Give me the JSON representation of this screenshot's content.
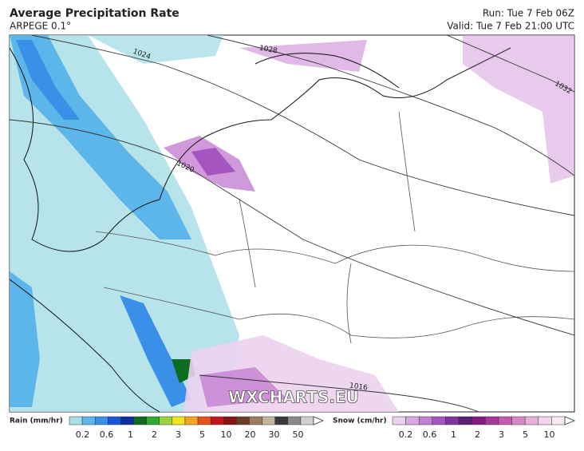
{
  "header": {
    "title": "Average Precipitation Rate",
    "subtitle": "ARPEGE 0.1°",
    "run": "Run: Tue 7 Feb 06Z",
    "valid": "Valid: Tue 7 Feb 21:00 UTC"
  },
  "map": {
    "watermark": "WXCHARTS.EU",
    "isobar_labels": [
      "1024",
      "1028",
      "1020",
      "1016",
      "1032"
    ]
  },
  "legend": {
    "rain": {
      "title": "Rain (mm/hr)",
      "ticks": [
        "0.2",
        "0.6",
        "1",
        "2",
        "3",
        "5",
        "10",
        "20",
        "30",
        "50"
      ],
      "colors": [
        "#a9dfe6",
        "#5cb6ea",
        "#3a8fe6",
        "#1b55d8",
        "#0b2f9c",
        "#0d6b22",
        "#2eaa2e",
        "#9ad43c",
        "#f2e41e",
        "#f5a524",
        "#e6521b",
        "#c2161b",
        "#8a1212",
        "#6b3c2a",
        "#9c7c5e",
        "#c4b59a",
        "#3a3a3a",
        "#8a8a8a",
        "#d0d0d0"
      ]
    },
    "snow": {
      "title": "Snow (cm/hr)",
      "ticks": [
        "0.2",
        "0.6",
        "1",
        "2",
        "3",
        "5",
        "10"
      ],
      "colors": [
        "#ecd2ee",
        "#d9a8e0",
        "#c47fd2",
        "#a455c0",
        "#7e33a0",
        "#5a1f78",
        "#821c7e",
        "#a8389a",
        "#c25cb0",
        "#d886c6",
        "#e8b0d8",
        "#f3d4e9",
        "#faeaf4"
      ]
    }
  }
}
